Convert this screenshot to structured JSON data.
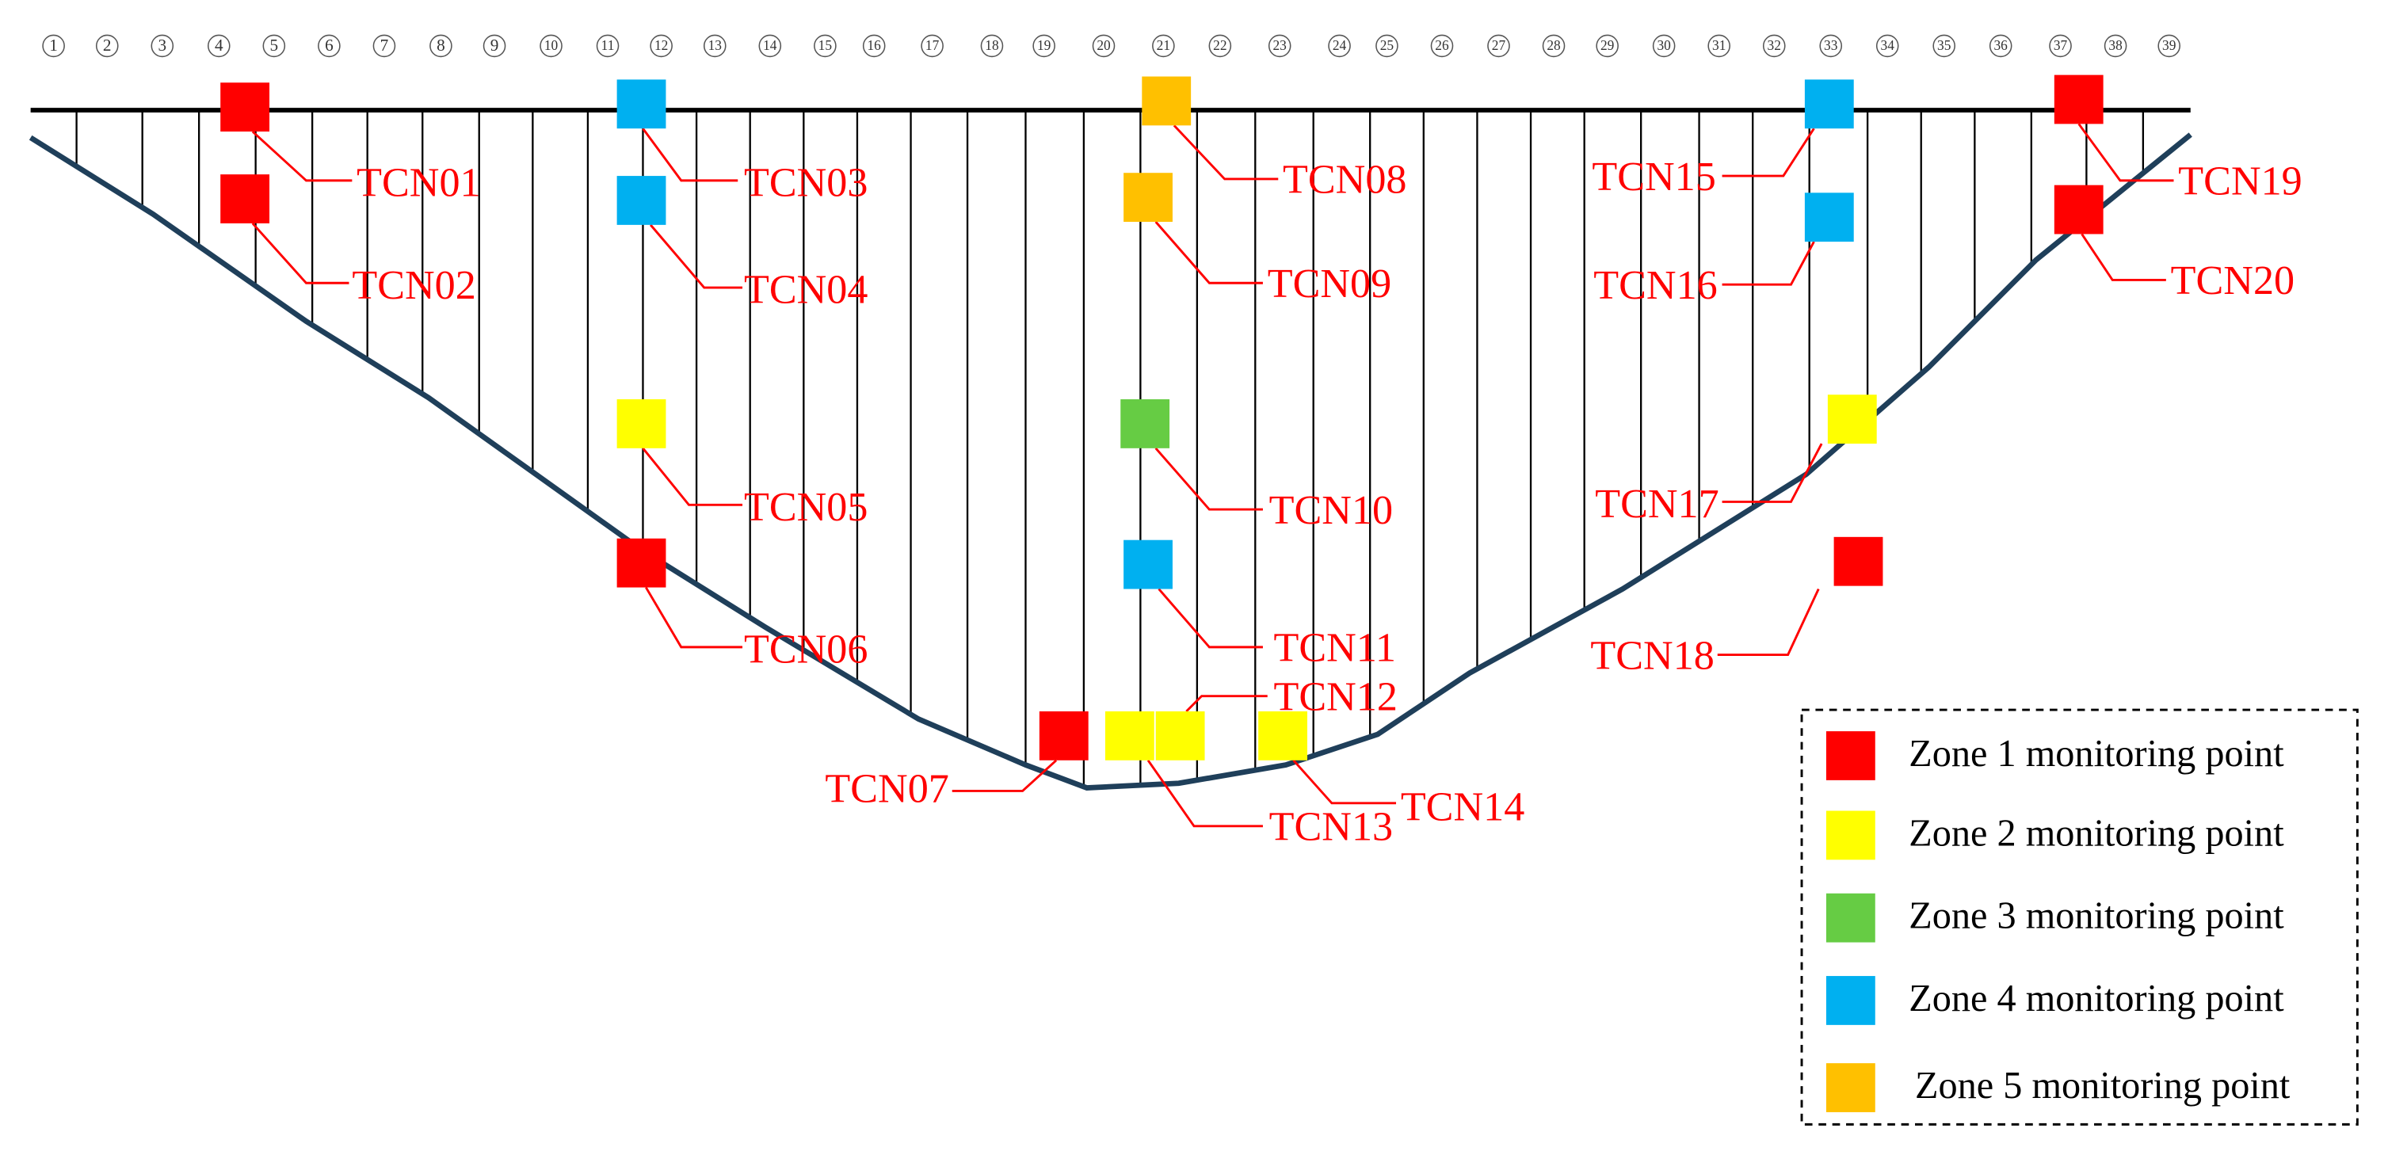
{
  "columns": [
    "1",
    "2",
    "3",
    "4",
    "5",
    "6",
    "7",
    "8",
    "9",
    "10",
    "11",
    "12",
    "13",
    "14",
    "15",
    "16",
    "17",
    "18",
    "19",
    "20",
    "21",
    "22",
    "23",
    "24",
    "25",
    "26",
    "27",
    "28",
    "29",
    "30",
    "31",
    "32",
    "33",
    "34",
    "35",
    "36",
    "37",
    "38",
    "39"
  ],
  "points": [
    {
      "label": "TCN01"
    },
    {
      "label": "TCN02"
    },
    {
      "label": "TCN03"
    },
    {
      "label": "TCN04"
    },
    {
      "label": "TCN05"
    },
    {
      "label": "TCN06"
    },
    {
      "label": "TCN07"
    },
    {
      "label": "TCN08"
    },
    {
      "label": "TCN09"
    },
    {
      "label": "TCN10"
    },
    {
      "label": "TCN11"
    },
    {
      "label": "TCN12"
    },
    {
      "label": "TCN13"
    },
    {
      "label": "TCN14"
    },
    {
      "label": "TCN15"
    },
    {
      "label": "TCN16"
    },
    {
      "label": "TCN17"
    },
    {
      "label": "TCN18"
    },
    {
      "label": "TCN19"
    },
    {
      "label": "TCN20"
    }
  ],
  "legend": [
    {
      "label": "Zone 1 monitoring point"
    },
    {
      "label": "Zone 2 monitoring point"
    },
    {
      "label": "Zone 3 monitoring point"
    },
    {
      "label": "Zone 4 monitoring point"
    },
    {
      "label": "Zone 5 monitoring point"
    }
  ]
}
